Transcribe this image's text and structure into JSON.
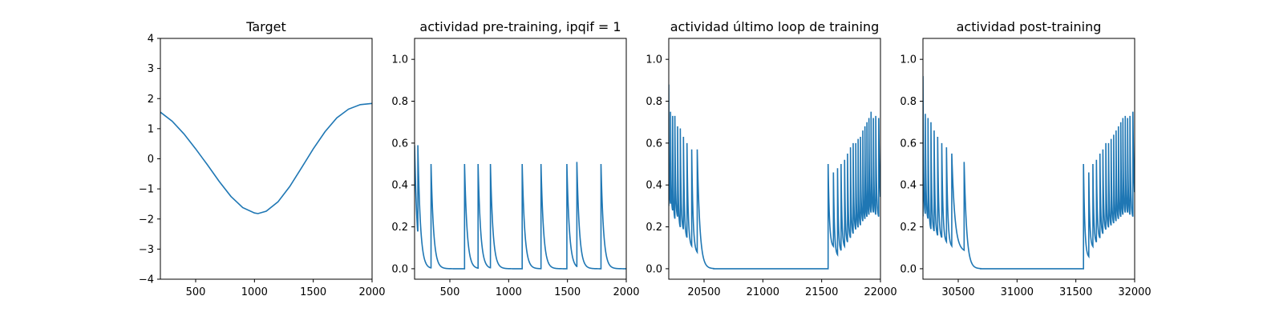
{
  "chart_data": [
    {
      "type": "line",
      "title": "Target",
      "xlim": [
        200,
        2000
      ],
      "ylim": [
        -4,
        4
      ],
      "xticks": [
        500,
        1000,
        1500,
        2000
      ],
      "yticks": [
        -4,
        -3,
        -2,
        -1,
        0,
        1,
        2,
        3,
        4
      ],
      "ytick_labels": [
        "−4",
        "−3",
        "−2",
        "−1",
        "0",
        "1",
        "2",
        "3",
        "4"
      ],
      "color": "#1f77b4",
      "series": [
        {
          "x": [
            200,
            300,
            400,
            500,
            600,
            700,
            800,
            900,
            1000,
            1030,
            1100,
            1200,
            1300,
            1400,
            1500,
            1600,
            1700,
            1800,
            1900,
            2000
          ],
          "y": [
            1.55,
            1.25,
            0.83,
            0.33,
            -0.2,
            -0.75,
            -1.25,
            -1.62,
            -1.8,
            -1.82,
            -1.74,
            -1.43,
            -0.92,
            -0.3,
            0.33,
            0.9,
            1.36,
            1.65,
            1.8,
            1.84
          ]
        }
      ]
    },
    {
      "type": "line",
      "title": "actividad pre-training, ipqif = 1",
      "xlim": [
        200,
        2000
      ],
      "ylim": [
        -0.05,
        1.1
      ],
      "xticks": [
        500,
        1000,
        1500,
        2000
      ],
      "yticks": [
        0.0,
        0.2,
        0.4,
        0.6,
        0.8,
        1.0
      ],
      "ytick_labels": [
        "0.0",
        "0.2",
        "0.4",
        "0.6",
        "0.8",
        "1.0"
      ],
      "color": "#1f77b4",
      "decay_tau": 22,
      "spikes": [
        {
          "t": 228,
          "peak": 0.59
        },
        {
          "t": 340,
          "peak": 0.5
        },
        {
          "t": 625,
          "peak": 0.5
        },
        {
          "t": 740,
          "peak": 0.5
        },
        {
          "t": 845,
          "peak": 0.5
        },
        {
          "t": 1115,
          "peak": 0.5
        },
        {
          "t": 1275,
          "peak": 0.5
        },
        {
          "t": 1495,
          "peak": 0.5
        },
        {
          "t": 1580,
          "peak": 0.51
        },
        {
          "t": 1785,
          "peak": 0.5
        }
      ],
      "start": {
        "t": 200,
        "value": 0.59,
        "min": 0.1
      }
    },
    {
      "type": "line",
      "title": "actividad último loop de training",
      "xlim": [
        20200,
        22000
      ],
      "ylim": [
        -0.05,
        1.1
      ],
      "xticks": [
        20500,
        21000,
        21500,
        22000
      ],
      "yticks": [
        0.0,
        0.2,
        0.4,
        0.6,
        0.8,
        1.0
      ],
      "ytick_labels": [
        "0.0",
        "0.2",
        "0.4",
        "0.6",
        "0.8",
        "1.0"
      ],
      "color": "#1f77b4",
      "decay_tau": 22,
      "bursts": [
        {
          "start": 20200,
          "end": 20500,
          "peaks": [
            0.88,
            0.75,
            0.73,
            0.73,
            0.68,
            0.67,
            0.63,
            0.6,
            0.57,
            0.57
          ],
          "troughs": [
            0.3,
            0.27,
            0.23,
            0.24,
            0.19,
            0.18,
            0.14,
            0.1,
            0.07,
            0.06
          ],
          "spike_times": [
            20200,
            20215,
            20233,
            20252,
            20275,
            20298,
            20325,
            20355,
            20395,
            20442
          ]
        },
        {
          "start": 21550,
          "end": 22000,
          "peaks": [
            0.5,
            0.46,
            0.48,
            0.5,
            0.52,
            0.55,
            0.58,
            0.6,
            0.6,
            0.62,
            0.63,
            0.66,
            0.68,
            0.7,
            0.72,
            0.75,
            0.72,
            0.73,
            0.72
          ],
          "troughs": [
            0.1,
            0.06,
            0.08,
            0.1,
            0.12,
            0.14,
            0.16,
            0.18,
            0.19,
            0.2,
            0.22,
            0.23,
            0.24,
            0.25,
            0.26,
            0.26,
            0.25,
            0.24,
            0.22
          ],
          "spike_times": [
            21555,
            21600,
            21635,
            21665,
            21695,
            21720,
            21745,
            21768,
            21790,
            21810,
            21830,
            21850,
            21868,
            21885,
            21902,
            21920,
            21940,
            21960,
            21985
          ]
        }
      ]
    },
    {
      "type": "line",
      "title": "actividad post-training",
      "xlim": [
        30200,
        32000
      ],
      "ylim": [
        -0.05,
        1.1
      ],
      "xticks": [
        30500,
        31000,
        31500,
        32000
      ],
      "yticks": [
        0.0,
        0.2,
        0.4,
        0.6,
        0.8,
        1.0
      ],
      "ytick_labels": [
        "0.0",
        "0.2",
        "0.4",
        "0.6",
        "0.8",
        "1.0"
      ],
      "color": "#1f77b4",
      "decay_tau": 22,
      "bursts": [
        {
          "start": 30200,
          "end": 30560,
          "peaks": [
            0.92,
            0.74,
            0.72,
            0.7,
            0.66,
            0.63,
            0.6,
            0.58,
            0.55,
            0.51
          ],
          "troughs": [
            0.25,
            0.23,
            0.18,
            0.17,
            0.15,
            0.14,
            0.12,
            0.1,
            0.08,
            0.06
          ],
          "spike_times": [
            30200,
            30220,
            30243,
            30268,
            30295,
            30325,
            30360,
            30400,
            30445,
            30550
          ]
        },
        {
          "start": 31560,
          "end": 32000,
          "peaks": [
            0.5,
            0.46,
            0.5,
            0.52,
            0.55,
            0.57,
            0.6,
            0.6,
            0.62,
            0.64,
            0.66,
            0.68,
            0.7,
            0.72,
            0.73,
            0.72,
            0.73,
            0.75
          ],
          "troughs": [
            0.05,
            0.1,
            0.12,
            0.14,
            0.16,
            0.18,
            0.19,
            0.2,
            0.21,
            0.22,
            0.23,
            0.24,
            0.25,
            0.26,
            0.26,
            0.25,
            0.24,
            0.24
          ],
          "spike_times": [
            31565,
            31610,
            31645,
            31675,
            31705,
            31730,
            31755,
            31778,
            31800,
            31822,
            31842,
            31862,
            31882,
            31900,
            31920,
            31940,
            31960,
            31985
          ]
        }
      ]
    }
  ]
}
